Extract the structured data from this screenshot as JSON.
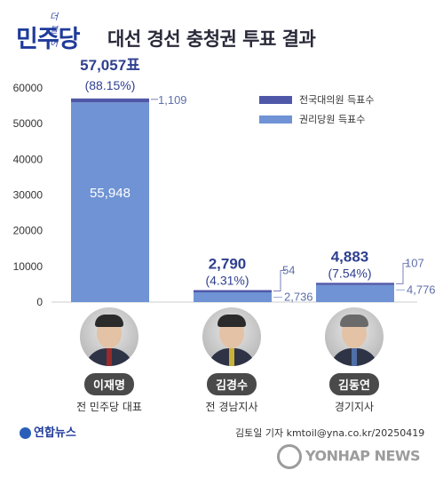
{
  "header": {
    "party_small": "더불어",
    "party": "민주당",
    "title": "대선 경선 충청권 투표 결과"
  },
  "colors": {
    "national_delegates": "#4f58a8",
    "rights_members": "#6f93d4",
    "label_dark": "#2f3f8f",
    "label_light": "#5f6fa8"
  },
  "chart_data": {
    "type": "bar",
    "stacked": true,
    "categories": [
      "이재명",
      "김경수",
      "김동연"
    ],
    "series": [
      {
        "name": "전국대의원 득표수",
        "values": [
          1109,
          54,
          107
        ]
      },
      {
        "name": "권리당원 득표수",
        "values": [
          55948,
          2736,
          4776
        ]
      }
    ],
    "totals": [
      57057,
      2790,
      4883
    ],
    "total_labels": [
      "57,057표",
      "2,790",
      "4,883"
    ],
    "percent_labels": [
      "(88.15%)",
      "(4.31%)",
      "(7.54%)"
    ],
    "segment_labels_top": [
      "1,109",
      "54",
      "107"
    ],
    "segment_labels_bottom": [
      "55,948",
      "2,736",
      "4,776"
    ],
    "ylim": [
      0,
      60000
    ],
    "yticks": [
      0,
      10000,
      20000,
      30000,
      40000,
      50000,
      60000
    ],
    "ytick_labels": [
      "0",
      "10000",
      "20000",
      "30000",
      "40000",
      "50000",
      "60000"
    ],
    "legend_position": "top-right",
    "grid": false
  },
  "legend": {
    "items": [
      "전국대의원 득표수",
      "권리당원 득표수"
    ]
  },
  "candidates": [
    {
      "name": "이재명",
      "role": "전 민주당 대표"
    },
    {
      "name": "김경수",
      "role": "전 경남지사"
    },
    {
      "name": "김동연",
      "role": "경기지사"
    }
  ],
  "footer": {
    "logo": "연합뉴스",
    "credit": "김토일 기자 kmtoil@yna.co.kr/20250419",
    "watermark": "YONHAP NEWS"
  }
}
